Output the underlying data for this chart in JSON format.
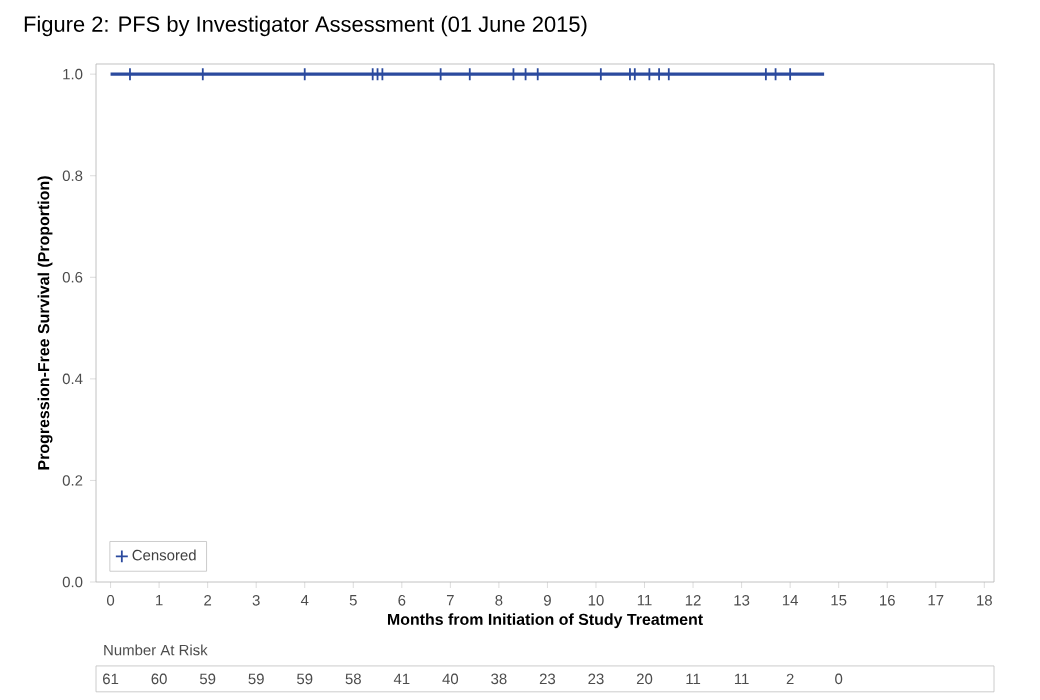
{
  "chart_data": {
    "type": "step",
    "title": "Figure 2:  PFS by Investigator Assessment (01 June 2015)",
    "xlabel": "Months from Initiation of Study Treatment",
    "ylabel": "Progression-Free Survival (Proportion)",
    "series": [
      {
        "color": "#2b4a9e",
        "x": [
          0,
          14.7
        ],
        "values": [
          1,
          1
        ]
      },
      {
        "type": "scatter",
        "name": "Censored",
        "color": "#2b4a9e",
        "marker": "cross",
        "x": [
          0.4,
          1.9,
          4.0,
          5.4,
          5.5,
          5.6,
          6.8,
          7.4,
          8.3,
          8.55,
          8.8,
          10.1,
          10.7,
          10.8,
          11.1,
          11.3,
          11.5,
          13.5,
          13.7,
          14.0
        ],
        "values": [
          1,
          1,
          1,
          1,
          1,
          1,
          1,
          1,
          1,
          1,
          1,
          1,
          1,
          1,
          1,
          1,
          1,
          1,
          1,
          1
        ]
      }
    ],
    "xlim": [
      -0.3,
      18.2
    ],
    "ylim": [
      0,
      1.02
    ],
    "xticks": [
      0,
      1,
      2,
      3,
      4,
      5,
      6,
      7,
      8,
      9,
      10,
      11,
      12,
      13,
      14,
      15,
      16,
      17,
      18
    ],
    "yticks": [
      {
        "value": 0,
        "label": "0.0"
      },
      {
        "value": 0.2,
        "label": "0.2"
      },
      {
        "value": 0.4,
        "label": "0.4"
      },
      {
        "value": 0.6,
        "label": "0.6"
      },
      {
        "value": 0.8,
        "label": "0.8"
      },
      {
        "value": 1,
        "label": "1.0"
      }
    ],
    "grid": false,
    "legend": "bottom left",
    "annotations": [
      "Number At Risk",
      "61",
      "60",
      "59",
      "59",
      "59",
      "58",
      "41",
      "40",
      "38",
      "23",
      "23",
      "20",
      "11",
      "11",
      "2",
      "0"
    ]
  }
}
